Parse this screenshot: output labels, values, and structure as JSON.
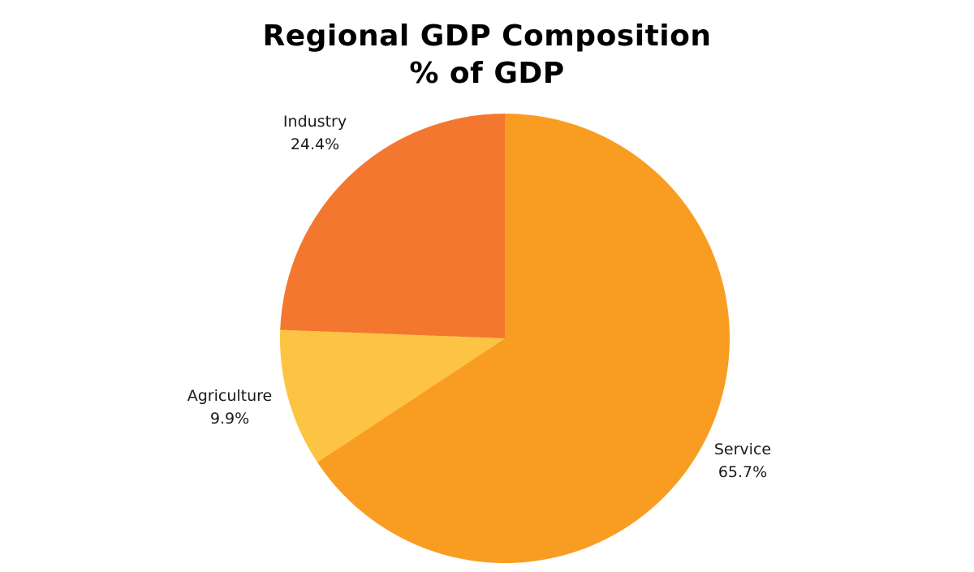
{
  "chart_data": {
    "type": "pie",
    "title": "Regional GDP Composition",
    "subtitle": "% of GDP",
    "slices": [
      {
        "label": "Service",
        "value": 65.7,
        "display": "65.7%",
        "color": "#F99D22"
      },
      {
        "label": "Agriculture",
        "value": 9.9,
        "display": "9.9%",
        "color": "#FDC443"
      },
      {
        "label": "Industry",
        "value": 24.4,
        "display": "24.4%",
        "color": "#F3772E"
      }
    ],
    "start_angle_deg": 0,
    "direction": "clockwise",
    "legend": "none",
    "labels": "outside"
  }
}
